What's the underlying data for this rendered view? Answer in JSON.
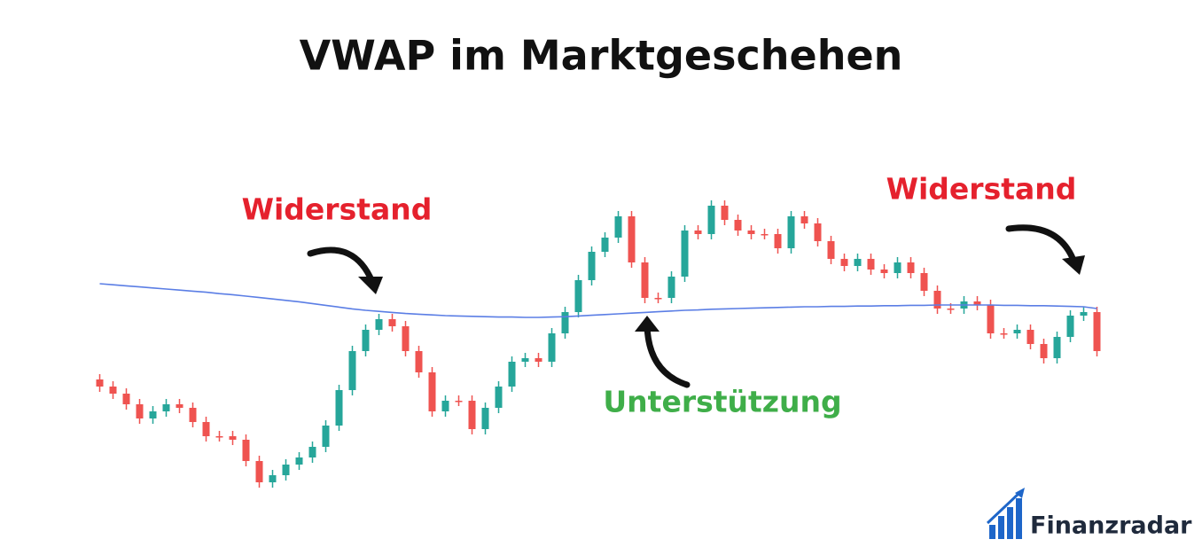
{
  "chart_data": {
    "type": "candlestick",
    "title": "VWAP im Marktgeschehen",
    "open": [
      43,
      41,
      39,
      36,
      32,
      34,
      36,
      35,
      31,
      27,
      27,
      26,
      20,
      14,
      16,
      19,
      21,
      24,
      30,
      40,
      51,
      57,
      60,
      58,
      51,
      45,
      34,
      37,
      37,
      29,
      35,
      41,
      48,
      49,
      48,
      56,
      62,
      71,
      79,
      83,
      89,
      76,
      66,
      66,
      72,
      85,
      84,
      92,
      88,
      85,
      84,
      84,
      80,
      89,
      87,
      82,
      77,
      75,
      77,
      74,
      73,
      76,
      73,
      68,
      63,
      63,
      65,
      64,
      56,
      56,
      57,
      53,
      49,
      55,
      61,
      62
    ],
    "high": [
      44.5,
      42.5,
      40.5,
      37.5,
      35.5,
      37.5,
      37.5,
      36.5,
      32.5,
      28.5,
      28.5,
      27.5,
      21.5,
      17.5,
      20.5,
      22.5,
      25.5,
      31.5,
      41.5,
      52.5,
      58.5,
      61.5,
      61.5,
      59.5,
      52.5,
      46.5,
      38.5,
      38.5,
      38.5,
      36.5,
      42.5,
      49.5,
      50.5,
      50.5,
      57.5,
      63.5,
      72.5,
      80.5,
      84.5,
      90.5,
      90.5,
      77.5,
      67.5,
      73.5,
      86.5,
      86.5,
      93.5,
      93.5,
      89.5,
      86.5,
      85.5,
      85.5,
      90.5,
      90.5,
      88.5,
      83.5,
      78.5,
      78.5,
      78.5,
      75.5,
      77.5,
      77.5,
      74.5,
      69.5,
      64.5,
      66.5,
      66.5,
      65.5,
      57.5,
      58.5,
      58.5,
      54.5,
      56.5,
      62.5,
      63.5,
      63.5
    ],
    "low": [
      39.5,
      37.5,
      34.5,
      30.5,
      30.5,
      32.5,
      33.5,
      29.5,
      25.5,
      25.5,
      24.5,
      18.5,
      12.5,
      12.5,
      14.5,
      17.5,
      19.5,
      22.5,
      28.5,
      38.5,
      49.5,
      55.5,
      56.5,
      49.5,
      43.5,
      32.5,
      32.5,
      35.5,
      27.5,
      27.5,
      33.5,
      39.5,
      46.5,
      46.5,
      46.5,
      54.5,
      60.5,
      69.5,
      77.5,
      81.5,
      74.5,
      64.5,
      64.5,
      64.5,
      70.5,
      82.5,
      82.5,
      86.5,
      83.5,
      82.5,
      82.5,
      78.5,
      78.5,
      85.5,
      80.5,
      75.5,
      73.5,
      73.5,
      72.5,
      71.5,
      71.5,
      71.5,
      66.5,
      61.5,
      61.5,
      61.5,
      62.5,
      54.5,
      54.5,
      54.5,
      51.5,
      47.5,
      47.5,
      53.5,
      59.5,
      49.5
    ],
    "close": [
      41,
      39,
      36,
      32,
      34,
      36,
      35,
      31,
      27,
      27,
      26,
      20,
      14,
      16,
      19,
      21,
      24,
      30,
      40,
      51,
      57,
      60,
      58,
      51,
      45,
      34,
      37,
      37,
      29,
      35,
      41,
      48,
      49,
      48,
      56,
      62,
      71,
      79,
      83,
      89,
      76,
      66,
      66,
      72,
      85,
      84,
      92,
      88,
      85,
      84,
      84,
      80,
      89,
      87,
      82,
      77,
      75,
      77,
      74,
      73,
      76,
      73,
      68,
      63,
      63,
      65,
      64,
      56,
      56,
      57,
      53,
      49,
      55,
      61,
      62,
      51
    ],
    "up_color": "#26a69a",
    "down_color": "#ef5350",
    "ylim": [
      0,
      100
    ],
    "vwap": {
      "color": "#5b7ee5",
      "values": [
        70,
        69.7,
        69.4,
        69.1,
        68.8,
        68.5,
        68.2,
        67.9,
        67.6,
        67.2,
        66.9,
        66.5,
        66.1,
        65.7,
        65.3,
        64.9,
        64.4,
        63.9,
        63.4,
        62.9,
        62.5,
        62.2,
        61.9,
        61.6,
        61.4,
        61.2,
        61,
        60.9,
        60.8,
        60.7,
        60.6,
        60.6,
        60.5,
        60.5,
        60.6,
        60.7,
        60.9,
        61.1,
        61.3,
        61.5,
        61.7,
        61.9,
        62.1,
        62.3,
        62.5,
        62.6,
        62.8,
        62.9,
        63,
        63.1,
        63.2,
        63.3,
        63.4,
        63.5,
        63.5,
        63.6,
        63.6,
        63.7,
        63.7,
        63.8,
        63.8,
        63.9,
        63.9,
        64,
        64,
        64,
        64,
        64,
        63.9,
        63.9,
        63.8,
        63.8,
        63.7,
        63.6,
        63.5,
        63
      ]
    },
    "annotations": [
      {
        "text": "Widerstand",
        "color": "#e5212d"
      },
      {
        "text": "Widerstand",
        "color": "#e5212d"
      },
      {
        "text": "Unterstützung",
        "color": "#3fae49"
      }
    ]
  },
  "logo": {
    "text": "Finanzradar"
  }
}
